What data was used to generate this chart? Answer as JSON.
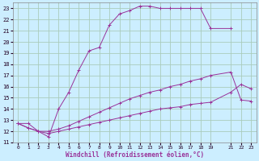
{
  "xlabel": "Windchill (Refroidissement éolien,°C)",
  "background_color": "#cceeff",
  "grid_color": "#aaccbb",
  "line_color": "#993399",
  "xlim": [
    -0.5,
    23.5
  ],
  "ylim": [
    11,
    23.5
  ],
  "yticks": [
    11,
    12,
    13,
    14,
    15,
    16,
    17,
    18,
    19,
    20,
    21,
    22,
    23
  ],
  "xticks": [
    0,
    1,
    2,
    3,
    4,
    5,
    6,
    7,
    8,
    9,
    10,
    11,
    12,
    13,
    14,
    15,
    16,
    17,
    18,
    19,
    21,
    22,
    23
  ],
  "series": [
    {
      "x": [
        0,
        1,
        2,
        3,
        4,
        5,
        6,
        7,
        8,
        9,
        10,
        11,
        12,
        13,
        14,
        15,
        16,
        17,
        18,
        19,
        21
      ],
      "y": [
        12.7,
        12.7,
        12.0,
        11.5,
        14.0,
        15.5,
        17.5,
        19.2,
        19.5,
        21.5,
        22.5,
        22.8,
        23.2,
        23.2,
        23.0,
        23.0,
        23.0,
        23.0,
        23.0,
        21.2,
        21.2
      ]
    },
    {
      "x": [
        0,
        1,
        2,
        3,
        4,
        5,
        6,
        7,
        8,
        9,
        10,
        11,
        12,
        13,
        14,
        15,
        16,
        17,
        18,
        19,
        21,
        22,
        23
      ],
      "y": [
        12.7,
        12.3,
        12.0,
        12.0,
        12.2,
        12.5,
        12.9,
        13.3,
        13.7,
        14.1,
        14.5,
        14.9,
        15.2,
        15.5,
        15.7,
        16.0,
        16.2,
        16.5,
        16.7,
        17.0,
        17.3,
        14.8,
        14.7
      ]
    },
    {
      "x": [
        0,
        1,
        2,
        3,
        4,
        5,
        6,
        7,
        8,
        9,
        10,
        11,
        12,
        13,
        14,
        15,
        16,
        17,
        18,
        19,
        21,
        22,
        23
      ],
      "y": [
        12.7,
        12.3,
        12.0,
        11.8,
        12.0,
        12.2,
        12.4,
        12.6,
        12.8,
        13.0,
        13.2,
        13.4,
        13.6,
        13.8,
        14.0,
        14.1,
        14.2,
        14.4,
        14.5,
        14.6,
        15.5,
        16.2,
        15.8
      ]
    }
  ]
}
